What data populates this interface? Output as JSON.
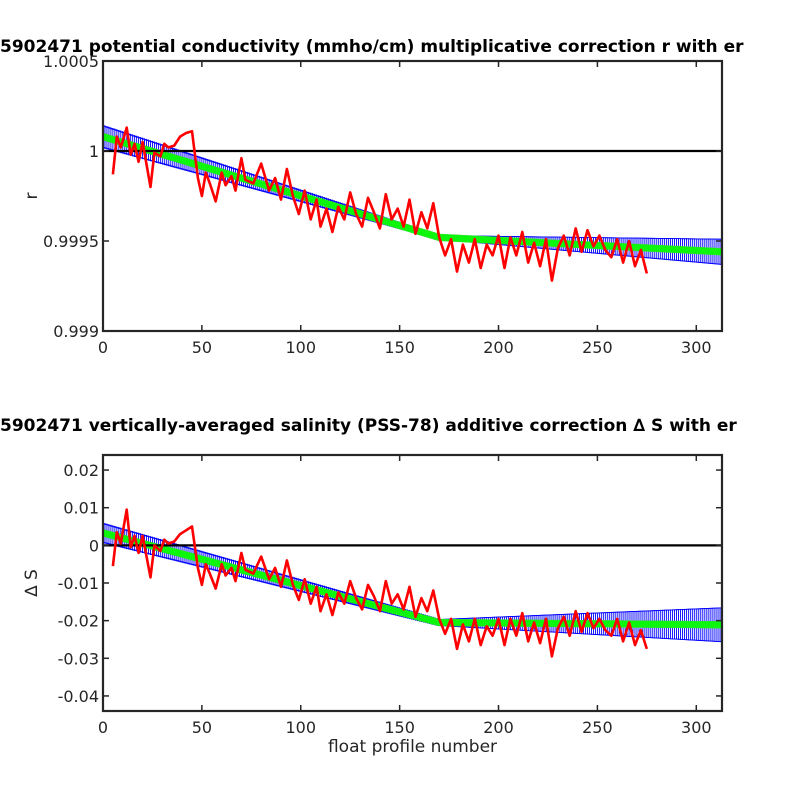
{
  "chart_data": [
    {
      "type": "line",
      "title": "5902471 potential conductivity (mmho/cm) multiplicative correction r with er",
      "xlabel": "",
      "ylabel": "r",
      "xlim": [
        0,
        313
      ],
      "ylim": [
        0.999,
        1.0005
      ],
      "x_ticks": [
        "0",
        "50",
        "100",
        "150",
        "200",
        "250",
        "300"
      ],
      "y_ticks": [
        "0.999",
        "0.9995",
        "1",
        "1.0005"
      ],
      "grid": false,
      "reference_line": 1,
      "colors": {
        "raw": "#ff0000",
        "fit": "#00ff00",
        "error": "#0000ff",
        "reference": "#000000"
      },
      "fit_knots": {
        "x": [
          0,
          170,
          313
        ],
        "y": [
          1.00008,
          0.99952,
          0.99944
        ]
      },
      "error_band": {
        "x": [
          0,
          170,
          313
        ],
        "half_width": [
          6e-05,
          1e-05,
          7e-05
        ]
      },
      "series": [
        {
          "x": [
            5,
            7,
            9,
            12,
            14,
            16,
            18,
            20,
            24,
            26,
            29,
            31,
            33,
            36,
            39,
            42,
            45,
            48,
            50,
            52,
            54,
            57,
            60,
            62,
            65,
            67,
            70,
            72,
            76,
            80,
            84,
            87,
            90,
            93,
            96,
            99,
            102,
            105,
            108,
            110,
            113,
            116,
            119,
            122,
            125,
            128,
            131,
            134,
            137,
            140,
            143,
            146,
            149,
            152,
            155,
            158,
            161,
            164,
            167,
            170,
            173,
            176,
            179,
            182,
            185,
            188,
            191,
            194,
            197,
            200,
            203,
            206,
            209,
            212,
            215,
            218,
            221,
            224,
            227,
            230,
            233,
            236,
            239,
            242,
            245,
            248,
            251,
            254,
            257,
            260,
            263,
            266,
            269,
            272,
            275
          ],
          "y": [
            0.99987,
            1.00008,
            1.00002,
            1.00013,
            0.99998,
            1.00004,
            0.99994,
            1.00005,
            0.9998,
            0.99999,
            0.99997,
            1.00004,
            1.00002,
            1.00003,
            1.00008,
            1.0001,
            1.00011,
            0.99985,
            0.99975,
            0.99988,
            0.99982,
            0.99972,
            0.99988,
            0.99981,
            0.99986,
            0.99978,
            0.99996,
            0.99984,
            0.99982,
            0.99993,
            0.99978,
            0.99985,
            0.99973,
            0.9999,
            0.99975,
            0.99965,
            0.99978,
            0.99962,
            0.99973,
            0.99958,
            0.99968,
            0.99955,
            0.99969,
            0.99962,
            0.99977,
            0.99965,
            0.99958,
            0.99974,
            0.99966,
            0.99957,
            0.99976,
            0.99962,
            0.99968,
            0.99958,
            0.99973,
            0.99954,
            0.99966,
            0.99957,
            0.99971,
            0.99952,
            0.99942,
            0.99951,
            0.99933,
            0.99948,
            0.99938,
            0.99951,
            0.99935,
            0.99948,
            0.99942,
            0.99953,
            0.99935,
            0.99952,
            0.99942,
            0.99955,
            0.99938,
            0.99949,
            0.99936,
            0.99951,
            0.99928,
            0.99946,
            0.99953,
            0.99942,
            0.99957,
            0.99944,
            0.99956,
            0.99947,
            0.99953,
            0.99945,
            0.99941,
            0.99951,
            0.99938,
            0.9995,
            0.99936,
            0.99945,
            0.99932
          ]
        }
      ]
    },
    {
      "type": "line",
      "title": "5902471 vertically-averaged salinity (PSS-78) additive correction ∆ S with er",
      "xlabel": "float profile number",
      "ylabel": "∆ S",
      "xlim": [
        0,
        313
      ],
      "ylim": [
        -0.044,
        0.024
      ],
      "x_ticks": [
        "0",
        "50",
        "100",
        "150",
        "200",
        "250",
        "300"
      ],
      "y_ticks": [
        "-0.04",
        "-0.03",
        "-0.02",
        "-0.01",
        "0",
        "0.01",
        "0.02"
      ],
      "grid": false,
      "reference_line": 0,
      "colors": {
        "raw": "#ff0000",
        "fit": "#00ff00",
        "error": "#0000ff",
        "reference": "#000000"
      },
      "fit_knots": {
        "x": [
          0,
          170,
          313
        ],
        "y": [
          0.0033,
          -0.0205,
          -0.0211
        ]
      },
      "error_band": {
        "x": [
          0,
          170,
          313
        ],
        "half_width": [
          0.0025,
          0.0008,
          0.0045
        ]
      },
      "series": [
        {
          "x": [
            5,
            7,
            9,
            12,
            14,
            16,
            18,
            20,
            24,
            26,
            29,
            31,
            33,
            36,
            39,
            42,
            45,
            48,
            50,
            52,
            54,
            57,
            60,
            62,
            65,
            67,
            70,
            72,
            76,
            80,
            84,
            87,
            90,
            93,
            96,
            99,
            102,
            105,
            108,
            110,
            113,
            116,
            119,
            122,
            125,
            128,
            131,
            134,
            137,
            140,
            143,
            146,
            149,
            152,
            155,
            158,
            161,
            164,
            167,
            170,
            173,
            176,
            179,
            182,
            185,
            188,
            191,
            194,
            197,
            200,
            203,
            206,
            209,
            212,
            215,
            218,
            221,
            224,
            227,
            230,
            233,
            236,
            239,
            242,
            245,
            248,
            251,
            254,
            257,
            260,
            263,
            266,
            269,
            272,
            275
          ],
          "y": [
            -0.0055,
            0.0035,
            0.0005,
            0.0095,
            -0.0005,
            0.0025,
            -0.002,
            0.0025,
            -0.0085,
            0,
            -0.0015,
            0.0015,
            0.0005,
            0.001,
            0.003,
            0.004,
            0.005,
            -0.006,
            -0.0105,
            -0.005,
            -0.0075,
            -0.0115,
            -0.005,
            -0.008,
            -0.006,
            -0.0095,
            -0.002,
            -0.0065,
            -0.0075,
            -0.003,
            -0.009,
            -0.006,
            -0.011,
            -0.004,
            -0.0105,
            -0.0145,
            -0.009,
            -0.0155,
            -0.011,
            -0.0175,
            -0.013,
            -0.0185,
            -0.0125,
            -0.0155,
            -0.0095,
            -0.014,
            -0.017,
            -0.0105,
            -0.0135,
            -0.0175,
            -0.0095,
            -0.0155,
            -0.013,
            -0.017,
            -0.011,
            -0.019,
            -0.014,
            -0.0175,
            -0.012,
            -0.0195,
            -0.0235,
            -0.0195,
            -0.0275,
            -0.021,
            -0.0255,
            -0.0195,
            -0.0265,
            -0.0215,
            -0.024,
            -0.0195,
            -0.0265,
            -0.0195,
            -0.024,
            -0.018,
            -0.0255,
            -0.0205,
            -0.026,
            -0.0195,
            -0.0295,
            -0.022,
            -0.019,
            -0.024,
            -0.0175,
            -0.023,
            -0.018,
            -0.022,
            -0.0195,
            -0.0225,
            -0.024,
            -0.0195,
            -0.0255,
            -0.0205,
            -0.0265,
            -0.0225,
            -0.0275
          ]
        }
      ]
    }
  ]
}
